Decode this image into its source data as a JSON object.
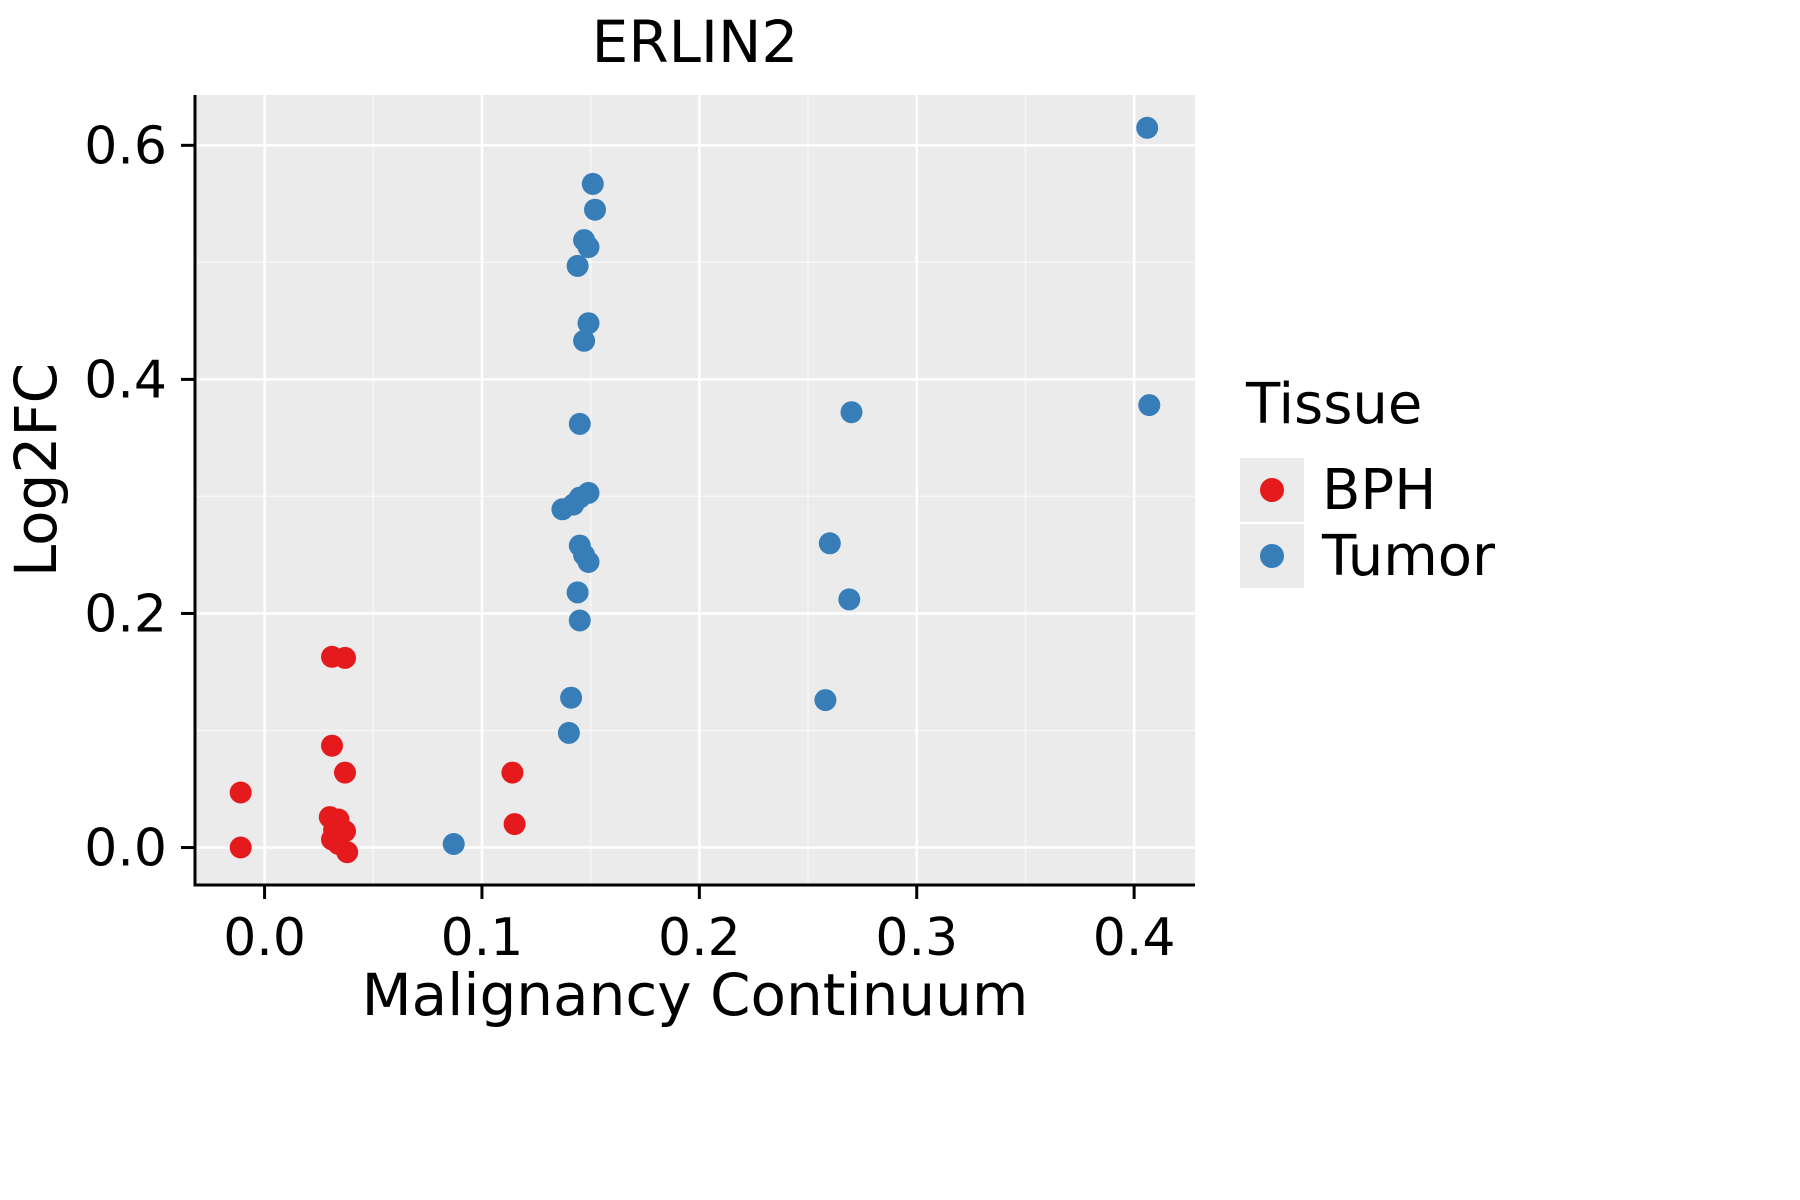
{
  "chart_data": {
    "type": "scatter",
    "title": "ERLIN2",
    "xlabel": "Malignancy Continuum",
    "ylabel": "Log2FC",
    "legend_title": "Tissue",
    "legend_position": "right",
    "xlim": [
      -0.032,
      0.428
    ],
    "ylim": [
      -0.032,
      0.643
    ],
    "xticks": [
      0.0,
      0.1,
      0.2,
      0.3,
      0.4
    ],
    "xtick_labels": [
      "0.0",
      "0.1",
      "0.2",
      "0.3",
      "0.4"
    ],
    "yticks": [
      0.0,
      0.2,
      0.4,
      0.6
    ],
    "ytick_labels": [
      "0.0",
      "0.2",
      "0.4",
      "0.6"
    ],
    "grid": true,
    "colors": {
      "panel": "#EBEBEB",
      "grid": "#FFFFFF",
      "axis": "#000000",
      "text": "#000000"
    },
    "series": [
      {
        "name": "BPH",
        "color": "#E41A1C",
        "points": [
          [
            -0.011,
            0.047
          ],
          [
            -0.011,
            0.0
          ],
          [
            0.031,
            0.163
          ],
          [
            0.037,
            0.162
          ],
          [
            0.031,
            0.087
          ],
          [
            0.037,
            0.064
          ],
          [
            0.03,
            0.026
          ],
          [
            0.034,
            0.024
          ],
          [
            0.032,
            0.015
          ],
          [
            0.037,
            0.014
          ],
          [
            0.031,
            0.007
          ],
          [
            0.034,
            0.003
          ],
          [
            0.038,
            -0.004
          ],
          [
            0.114,
            0.064
          ],
          [
            0.115,
            0.02
          ]
        ]
      },
      {
        "name": "Tumor",
        "color": "#377EB8",
        "points": [
          [
            0.087,
            0.003
          ],
          [
            0.151,
            0.567
          ],
          [
            0.152,
            0.545
          ],
          [
            0.147,
            0.519
          ],
          [
            0.149,
            0.513
          ],
          [
            0.144,
            0.497
          ],
          [
            0.149,
            0.448
          ],
          [
            0.147,
            0.433
          ],
          [
            0.145,
            0.362
          ],
          [
            0.137,
            0.289
          ],
          [
            0.142,
            0.293
          ],
          [
            0.145,
            0.299
          ],
          [
            0.149,
            0.303
          ],
          [
            0.145,
            0.258
          ],
          [
            0.147,
            0.25
          ],
          [
            0.149,
            0.244
          ],
          [
            0.144,
            0.218
          ],
          [
            0.145,
            0.194
          ],
          [
            0.141,
            0.128
          ],
          [
            0.14,
            0.098
          ],
          [
            0.27,
            0.372
          ],
          [
            0.26,
            0.26
          ],
          [
            0.269,
            0.212
          ],
          [
            0.258,
            0.126
          ],
          [
            0.406,
            0.615
          ],
          [
            0.407,
            0.378
          ]
        ]
      }
    ]
  }
}
